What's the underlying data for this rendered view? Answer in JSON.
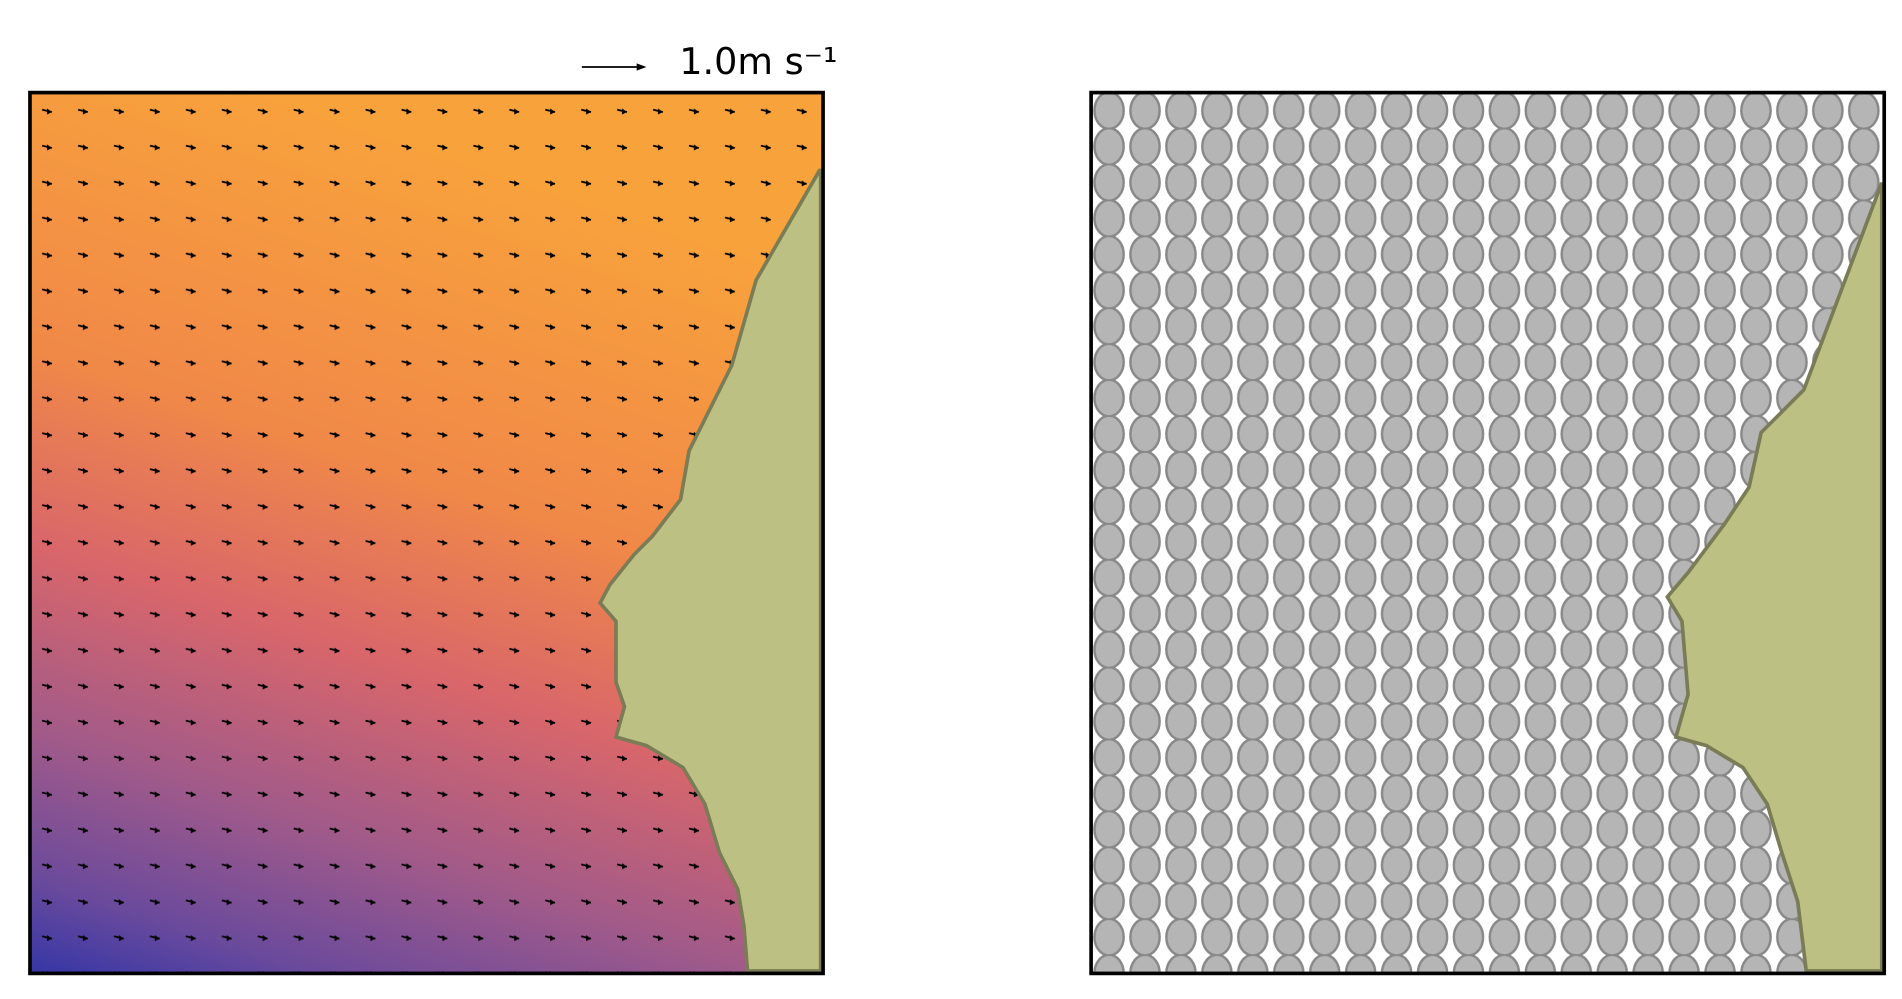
{
  "quiver_key": {
    "label": "1.0m s⁻¹"
  }
}
